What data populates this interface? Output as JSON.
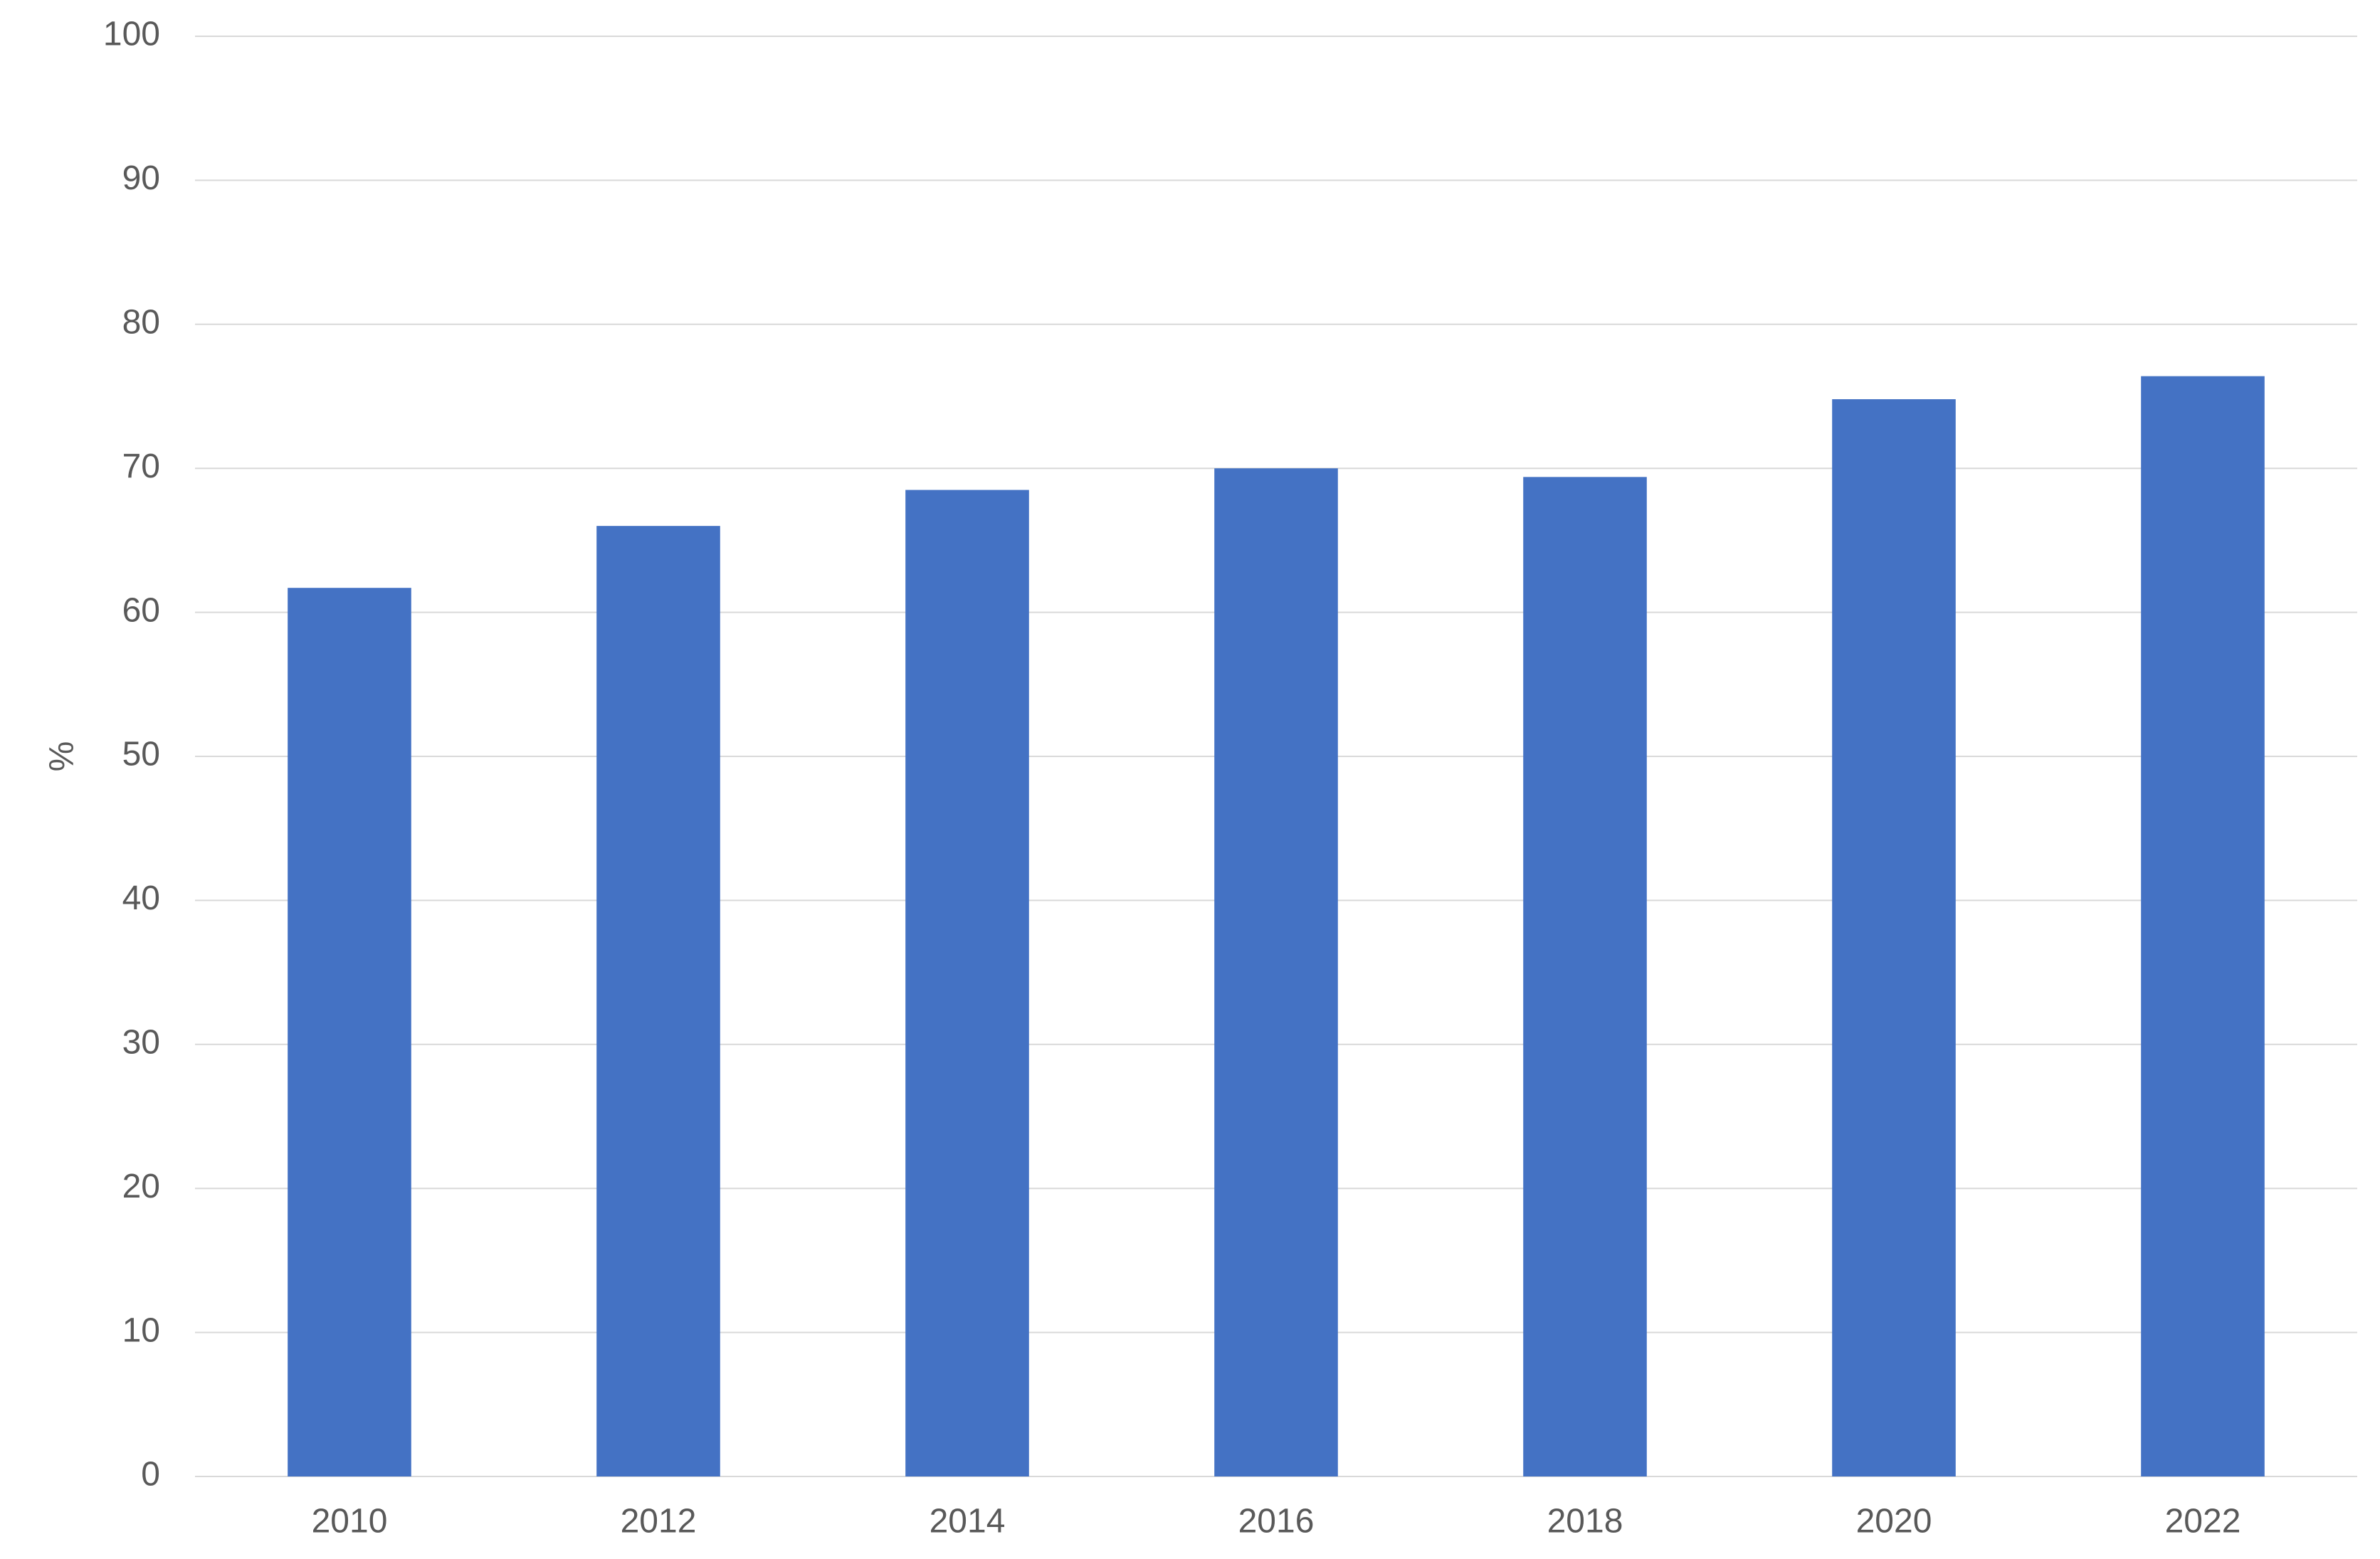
{
  "chart_data": {
    "type": "bar",
    "y_label": "%",
    "categories": [
      "2010",
      "2012",
      "2014",
      "2016",
      "2018",
      "2020",
      "2022"
    ],
    "values": [
      61.7,
      66.0,
      68.5,
      70.0,
      69.4,
      74.8,
      76.4
    ],
    "color": "#4472c4",
    "ylim": [
      0,
      100
    ],
    "yticks": [
      0,
      10,
      20,
      30,
      40,
      50,
      60,
      70,
      80,
      90,
      100
    ],
    "grid": true
  }
}
